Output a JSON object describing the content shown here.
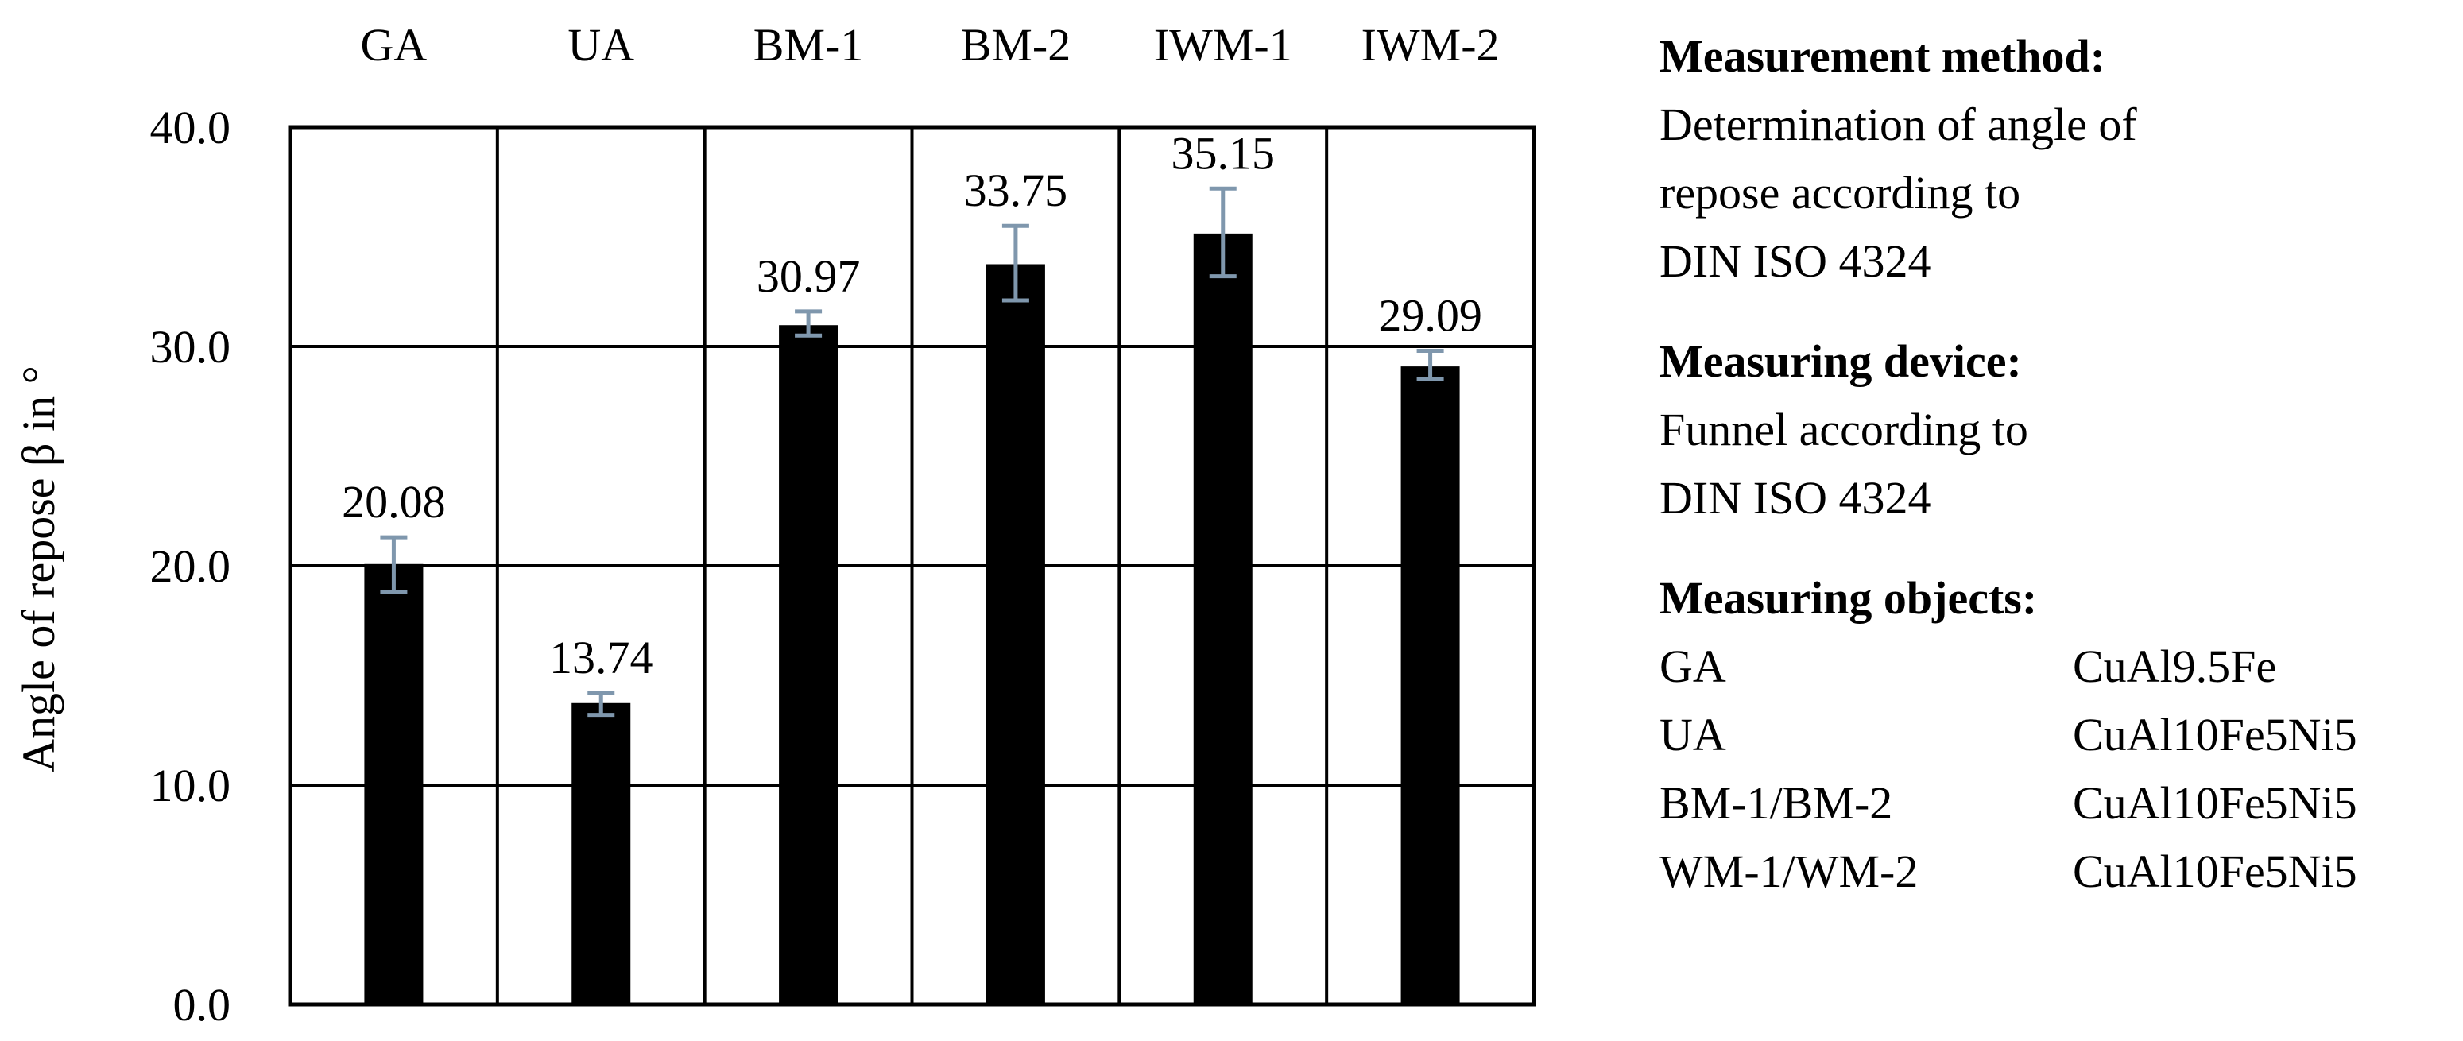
{
  "chart_data": {
    "type": "bar",
    "categories": [
      "GA",
      "UA",
      "BM-1",
      "BM-2",
      "IWM-1",
      "IWM-2"
    ],
    "values": [
      20.08,
      13.74,
      30.97,
      33.75,
      35.15,
      29.09
    ],
    "error_low": [
      18.8,
      13.2,
      30.5,
      32.1,
      33.2,
      28.5
    ],
    "error_high": [
      21.3,
      14.2,
      31.6,
      35.5,
      37.2,
      29.8
    ],
    "data_labels": [
      "20.08",
      "13.74",
      "30.97",
      "33.75",
      "35.15",
      "29.09"
    ],
    "ylabel": "Angle of repose β in °",
    "xlabel": "",
    "ylim": [
      0,
      40
    ],
    "yticks": [
      "0.0",
      "10.0",
      "20.0",
      "30.0",
      "40.0"
    ],
    "category_axis_position": "top",
    "grid": true,
    "bar_color": "#000000",
    "error_bar_color": "#7f97ad"
  },
  "legend_panel": {
    "method": {
      "heading": "Measurement method:",
      "lines": [
        "Determination of angle of",
        "repose according to",
        "DIN ISO 4324"
      ]
    },
    "device": {
      "heading": "Measuring device:",
      "lines": [
        "Funnel according to",
        "DIN ISO 4324"
      ]
    },
    "objects": {
      "heading": "Measuring objects:",
      "rows": [
        {
          "name": "GA",
          "material": "CuAl9.5Fe"
        },
        {
          "name": "UA",
          "material": "CuAl10Fe5Ni5"
        },
        {
          "name": "BM-1/BM-2",
          "material": "CuAl10Fe5Ni5"
        },
        {
          "name": "WM-1/WM-2",
          "material": "CuAl10Fe5Ni5"
        }
      ]
    }
  }
}
